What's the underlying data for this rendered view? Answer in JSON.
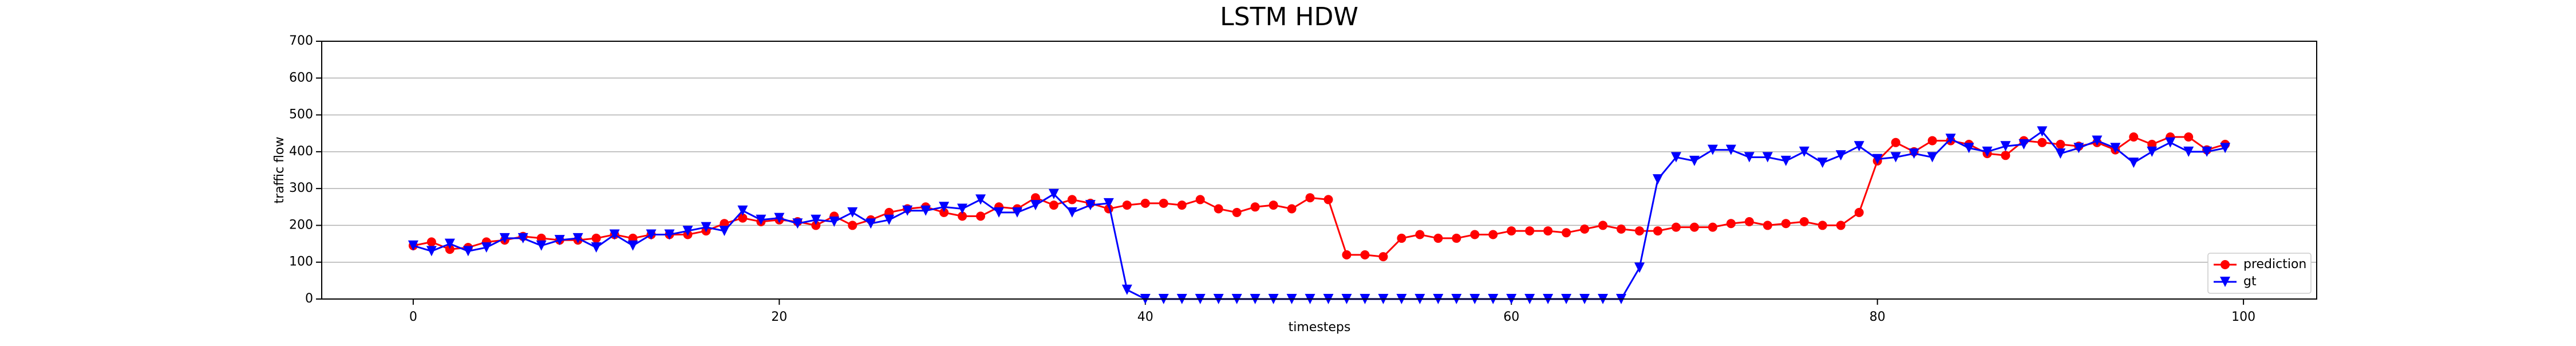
{
  "chart_data": {
    "type": "line",
    "title": "LSTM HDW",
    "xlabel": "timesteps",
    "ylabel": "traffic flow",
    "x": [
      0,
      1,
      2,
      3,
      4,
      5,
      6,
      7,
      8,
      9,
      10,
      11,
      12,
      13,
      14,
      15,
      16,
      17,
      18,
      19,
      20,
      21,
      22,
      23,
      24,
      25,
      26,
      27,
      28,
      29,
      30,
      31,
      32,
      33,
      34,
      35,
      36,
      37,
      38,
      39,
      40,
      41,
      42,
      43,
      44,
      45,
      46,
      47,
      48,
      49,
      50,
      51,
      52,
      53,
      54,
      55,
      56,
      57,
      58,
      59,
      60,
      61,
      62,
      63,
      64,
      65,
      66,
      67,
      68,
      69,
      70,
      71,
      72,
      73,
      74,
      75,
      76,
      77,
      78,
      79,
      80,
      81,
      82,
      83,
      84,
      85,
      86,
      87,
      88,
      89,
      90,
      91,
      92,
      93,
      94,
      95,
      96,
      97,
      98,
      99
    ],
    "series": [
      {
        "name": "prediction",
        "color": "#ff0000",
        "marker": "circle",
        "values": [
          145,
          155,
          135,
          140,
          155,
          160,
          170,
          165,
          160,
          160,
          165,
          175,
          165,
          175,
          175,
          175,
          185,
          205,
          220,
          210,
          215,
          210,
          200,
          225,
          200,
          215,
          235,
          245,
          250,
          235,
          225,
          225,
          250,
          245,
          275,
          255,
          270,
          260,
          245,
          255,
          260,
          260,
          255,
          270,
          245,
          235,
          250,
          255,
          245,
          275,
          270,
          120,
          120,
          115,
          165,
          175,
          165,
          165,
          175,
          175,
          185,
          185,
          185,
          180,
          190,
          200,
          190,
          185,
          185,
          195,
          195,
          195,
          205,
          210,
          200,
          205,
          210,
          200,
          200,
          235,
          375,
          425,
          400,
          430,
          430,
          420,
          395,
          390,
          430,
          425,
          420,
          415,
          425,
          405,
          440,
          420,
          440,
          440,
          405,
          420
        ]
      },
      {
        "name": "gt",
        "color": "#0000ff",
        "marker": "triangle-down",
        "values": [
          145,
          130,
          150,
          130,
          140,
          165,
          165,
          145,
          160,
          165,
          140,
          175,
          145,
          175,
          175,
          185,
          195,
          185,
          240,
          215,
          220,
          205,
          215,
          210,
          235,
          205,
          215,
          240,
          240,
          250,
          245,
          270,
          235,
          235,
          255,
          285,
          235,
          255,
          260,
          25,
          0,
          0,
          0,
          0,
          0,
          0,
          0,
          0,
          0,
          0,
          0,
          0,
          0,
          0,
          0,
          0,
          0,
          0,
          0,
          0,
          0,
          0,
          0,
          0,
          0,
          0,
          0,
          85,
          325,
          385,
          375,
          405,
          405,
          385,
          385,
          375,
          400,
          370,
          390,
          415,
          380,
          385,
          395,
          385,
          435,
          410,
          400,
          415,
          420,
          455,
          395,
          410,
          430,
          410,
          370,
          400,
          425,
          400,
          400,
          410
        ]
      }
    ],
    "xlim": [
      -5,
      104
    ],
    "ylim": [
      0,
      700
    ],
    "xticks": [
      0,
      20,
      40,
      60,
      80,
      100
    ],
    "yticks": [
      0,
      100,
      200,
      300,
      400,
      500,
      600,
      700
    ],
    "grid": "y",
    "legend": "lower right"
  }
}
